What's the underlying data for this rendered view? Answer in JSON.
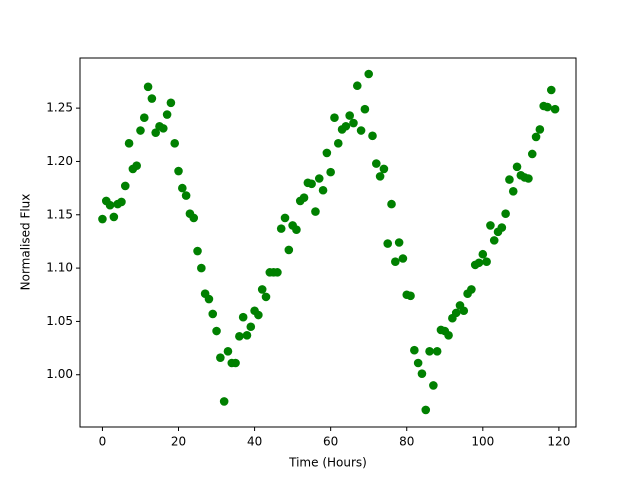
{
  "chart_data": {
    "type": "scatter",
    "xlabel": "Time (Hours)",
    "ylabel": "Normalised Flux",
    "x": [
      0,
      1,
      2,
      3,
      4,
      5,
      6,
      7,
      8,
      9,
      10,
      11,
      12,
      13,
      14,
      15,
      16,
      17,
      18,
      19,
      20,
      21,
      22,
      23,
      24,
      25,
      26,
      27,
      28,
      29,
      30,
      31,
      32,
      33,
      34,
      35,
      36,
      37,
      38,
      39,
      40,
      41,
      42,
      43,
      44,
      45,
      46,
      47,
      48,
      49,
      50,
      51,
      52,
      53,
      54,
      55,
      56,
      57,
      58,
      59,
      60,
      61,
      62,
      63,
      64,
      65,
      66,
      67,
      68,
      69,
      70,
      71,
      72,
      73,
      74,
      75,
      76,
      77,
      78,
      79,
      80,
      81,
      82,
      83,
      84,
      85,
      86,
      87,
      88,
      89,
      90,
      91,
      92,
      93,
      94,
      95,
      96,
      97,
      98,
      99,
      100,
      101,
      102,
      103,
      104,
      105,
      106,
      107,
      108,
      109,
      110,
      111,
      112,
      113,
      114,
      115,
      116,
      117,
      118,
      119
    ],
    "series": [
      {
        "color": "#008000",
        "values": [
          1.146,
          1.163,
          1.159,
          1.148,
          1.16,
          1.162,
          1.177,
          1.217,
          1.193,
          1.196,
          1.229,
          1.241,
          1.27,
          1.259,
          1.227,
          1.233,
          1.231,
          1.244,
          1.255,
          1.217,
          1.191,
          1.175,
          1.168,
          1.151,
          1.147,
          1.116,
          1.1,
          1.076,
          1.071,
          1.057,
          1.041,
          1.016,
          0.975,
          1.022,
          1.011,
          1.011,
          1.036,
          1.054,
          1.037,
          1.045,
          1.06,
          1.056,
          1.08,
          1.073,
          1.096,
          1.096,
          1.096,
          1.137,
          1.147,
          1.117,
          1.14,
          1.136,
          1.163,
          1.166,
          1.18,
          1.179,
          1.153,
          1.184,
          1.173,
          1.208,
          1.19,
          1.241,
          1.217,
          1.23,
          1.233,
          1.243,
          1.236,
          1.271,
          1.229,
          1.249,
          1.282,
          1.224,
          1.198,
          1.186,
          1.193,
          1.123,
          1.16,
          1.106,
          1.124,
          1.109,
          1.075,
          1.074,
          1.023,
          1.011,
          1.001,
          0.967,
          1.022,
          0.99,
          1.022,
          1.042,
          1.041,
          1.037,
          1.053,
          1.058,
          1.065,
          1.06,
          1.076,
          1.08,
          1.103,
          1.105,
          1.113,
          1.106,
          1.14,
          1.126,
          1.134,
          1.138,
          1.151,
          1.183,
          1.172,
          1.195,
          1.187,
          1.185,
          1.184,
          1.207,
          1.223,
          1.23,
          1.252,
          1.251,
          1.267,
          1.249
        ]
      }
    ],
    "xlim": [
      -5.9,
      124.5
    ],
    "xticks": [
      0,
      20,
      40,
      60,
      80,
      100,
      120
    ],
    "ylim": [
      0.951,
      1.297
    ],
    "yticks": [
      {
        "value": 1.0,
        "label": "1.00"
      },
      {
        "value": 1.05,
        "label": "1.05"
      },
      {
        "value": 1.1,
        "label": "1.10"
      },
      {
        "value": 1.15,
        "label": "1.15"
      },
      {
        "value": 1.2,
        "label": "1.20"
      },
      {
        "value": 1.25,
        "label": "1.25"
      }
    ]
  }
}
